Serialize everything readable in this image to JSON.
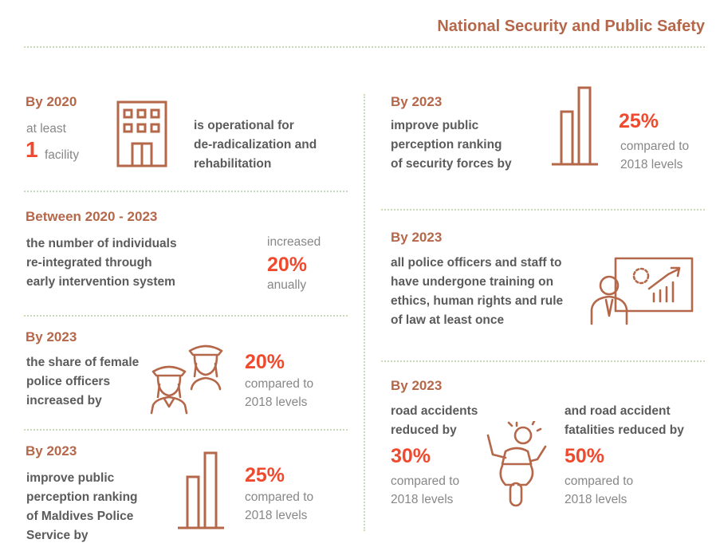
{
  "header": {
    "title": "National Security and Public Safety"
  },
  "left": {
    "facility": {
      "period": "By 2020",
      "at_least": "at least",
      "number": "1",
      "unit": "facility",
      "desc": [
        "is operational for",
        "de-radicalization and",
        "rehabilitation"
      ],
      "icon": "building-icon"
    },
    "reintegration": {
      "period": "Between 2020 - 2023",
      "desc": [
        "the number of individuals",
        "re-integrated through",
        "early intervention system"
      ],
      "pre": "increased",
      "value": "20%",
      "post": "anually"
    },
    "female_officers": {
      "period": "By 2023",
      "desc": [
        "the share of female",
        "police officers",
        "increased by"
      ],
      "value": "20%",
      "compare": [
        "compared to",
        "2018 levels"
      ],
      "icon": "female-officers-icon"
    },
    "police_service": {
      "period": "By 2023",
      "desc": [
        "improve public",
        "perception ranking",
        "of Maldives Police",
        "Service by"
      ],
      "value": "25%",
      "compare": [
        "compared to",
        "2018 levels"
      ],
      "icon": "bar-chart-icon"
    }
  },
  "right": {
    "security_forces": {
      "period": "By 2023",
      "desc": [
        "improve public",
        "perception ranking",
        "of security forces by"
      ],
      "value": "25%",
      "compare": [
        "compared to",
        "2018 levels"
      ],
      "icon": "bar-chart-icon"
    },
    "training": {
      "period": "By 2023",
      "desc": [
        "all police officers and staff to",
        "have undergone training on",
        "ethics, human rights and rule",
        "of law at least once"
      ],
      "icon": "presentation-icon"
    },
    "road": {
      "period": "By 2023",
      "left_desc": [
        "road accidents",
        "reduced by"
      ],
      "left_value": "30%",
      "left_compare": [
        "compared to",
        "2018 levels"
      ],
      "right_desc": [
        "and road accident",
        "fatalities reduced by"
      ],
      "right_value": "50%",
      "right_compare": [
        "compared to",
        "2018 levels"
      ],
      "icon": "motorcycle-accident-icon"
    }
  },
  "colors": {
    "heading": "#b5674a",
    "accent": "#ef4a2e",
    "icon": "#b5674a",
    "divider": "#c6dcb8"
  }
}
